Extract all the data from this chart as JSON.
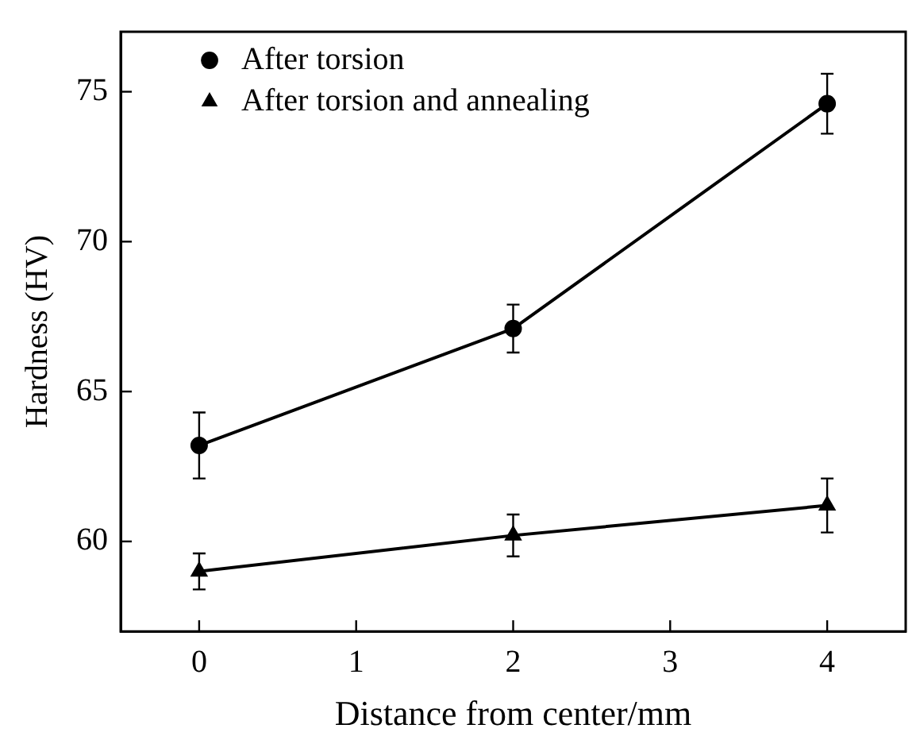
{
  "chart_data": {
    "type": "line",
    "xlabel": "Distance from center/mm",
    "ylabel": "Hardness (HV)",
    "x": [
      0,
      2,
      4
    ],
    "series": [
      {
        "name": "After torsion",
        "color": "#000000",
        "marker": "circle",
        "values": [
          63.2,
          67.1,
          74.6
        ],
        "errors": [
          1.1,
          0.8,
          1.0
        ]
      },
      {
        "name": "After torsion and annealing",
        "color": "#000000",
        "marker": "triangle",
        "values": [
          59.0,
          60.2,
          61.2
        ],
        "errors": [
          0.6,
          0.7,
          0.9
        ]
      }
    ],
    "xlim": [
      -0.5,
      4.5
    ],
    "xticks": [
      0,
      1,
      2,
      3,
      4
    ],
    "ylim": [
      57,
      77
    ],
    "yticks": [
      60,
      65,
      70,
      75
    ],
    "grid": false,
    "legend": "top left",
    "line_style": "solid"
  }
}
